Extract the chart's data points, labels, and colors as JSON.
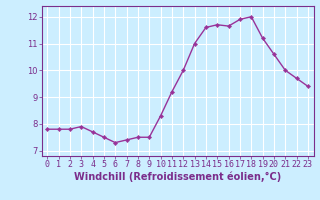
{
  "x": [
    0,
    1,
    2,
    3,
    4,
    5,
    6,
    7,
    8,
    9,
    10,
    11,
    12,
    13,
    14,
    15,
    16,
    17,
    18,
    19,
    20,
    21,
    22,
    23
  ],
  "y": [
    7.8,
    7.8,
    7.8,
    7.9,
    7.7,
    7.5,
    7.3,
    7.4,
    7.5,
    7.5,
    8.3,
    9.2,
    10.0,
    11.0,
    11.6,
    11.7,
    11.65,
    11.9,
    12.0,
    11.2,
    10.6,
    10.0,
    9.7,
    9.4
  ],
  "line_color": "#993399",
  "marker": "D",
  "marker_size": 2.2,
  "linewidth": 1.0,
  "xlabel": "Windchill (Refroidissement éolien,°C)",
  "xlim": [
    -0.5,
    23.5
  ],
  "ylim": [
    6.8,
    12.4
  ],
  "yticks": [
    7,
    8,
    9,
    10,
    11,
    12
  ],
  "xticks": [
    0,
    1,
    2,
    3,
    4,
    5,
    6,
    7,
    8,
    9,
    10,
    11,
    12,
    13,
    14,
    15,
    16,
    17,
    18,
    19,
    20,
    21,
    22,
    23
  ],
  "background_color": "#cceeff",
  "grid_color": "#ffffff",
  "tick_color": "#7b2d8b",
  "tick_labelsize": 6.0,
  "xlabel_fontsize": 7.0,
  "border_color": "#7b2d8b"
}
